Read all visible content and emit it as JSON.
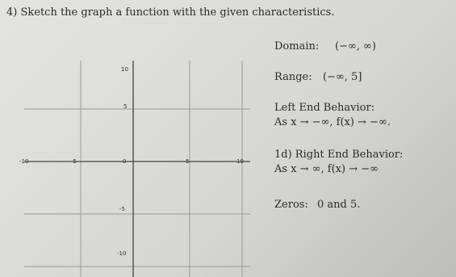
{
  "question": {
    "title": "4) Sketch the graph a function with the given characteristics."
  },
  "graph": {
    "y_labels": [
      "10",
      "5",
      "-5",
      "-10"
    ],
    "x_labels": [
      "-10",
      "-5",
      "0",
      "5",
      "10"
    ]
  },
  "characteristics": [
    {
      "label": "Domain:",
      "value": "(−∞, ∞)"
    },
    {
      "label": "Range:",
      "value": "(−∞, 5]"
    },
    {
      "label": "Left End Behavior:",
      "value": "As x → −∞, f(x) → −∞."
    },
    {
      "label": "1d) Right End Behavior:",
      "value": "As x → ∞, f(x) → −∞"
    },
    {
      "label": "Zeros:",
      "value": "0 and 5."
    }
  ]
}
